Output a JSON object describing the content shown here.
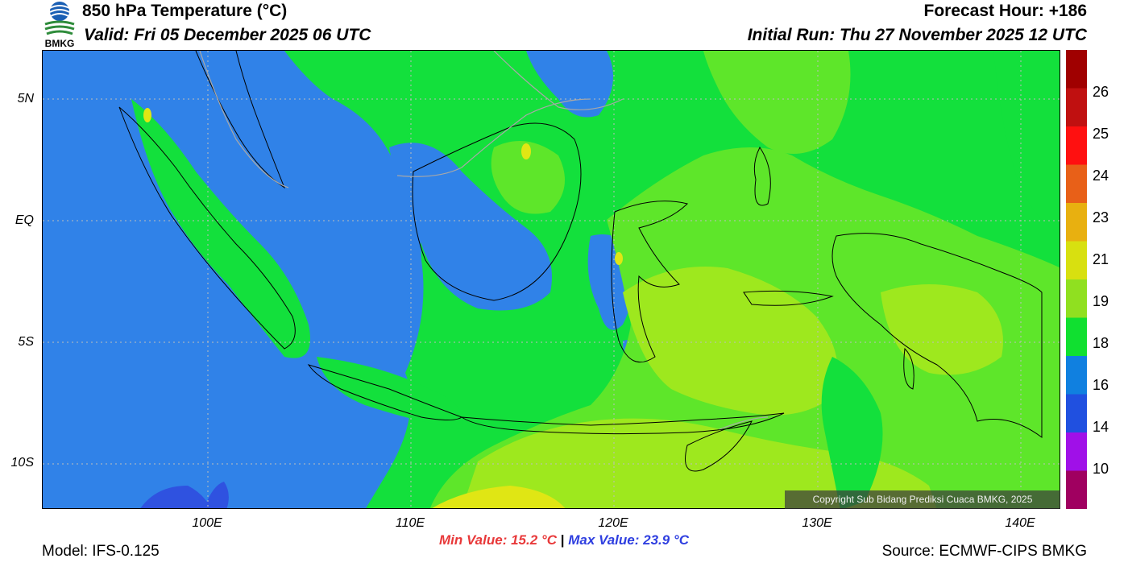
{
  "header": {
    "title": "850 hPa Temperature (°C)",
    "valid": "Valid: Fri 05 December 2025 06 UTC",
    "forecast_hour": "Forecast Hour: +186",
    "initial_run": "Initial Run: Thu 27 November 2025 12 UTC",
    "logo_text": "BMKG"
  },
  "map": {
    "lat_ticks": [
      "5N",
      "EQ",
      "5S",
      "10S"
    ],
    "lon_ticks": [
      "100E",
      "110E",
      "120E",
      "130E",
      "140E"
    ],
    "copyright": "Copyright Sub Bidang Prediksi Cuaca BMKG, 2025",
    "colors": {
      "le14": "#2f52e0",
      "c16": "#3082e8",
      "c18": "#13e03c",
      "c19": "#5ee62a",
      "c21": "#9ee81e",
      "c23": "#e0e614"
    }
  },
  "colorbar": {
    "levels": [
      "26",
      "25",
      "24",
      "23",
      "21",
      "19",
      "18",
      "16",
      "14",
      "10"
    ],
    "colors": [
      "#a00000",
      "#c01010",
      "#ff1010",
      "#e86018",
      "#e8b010",
      "#d8e010",
      "#90e020",
      "#10e030",
      "#1080e0",
      "#2050e0",
      "#a010e8",
      "#a00060"
    ]
  },
  "stats": {
    "min_label": "Min Value: 15.2 °C",
    "separator": "|",
    "max_label": "Max Value: 23.9 °C"
  },
  "footer": {
    "model": "Model: IFS-0.125",
    "source": "Source: ECMWF-CIPS BMKG"
  }
}
